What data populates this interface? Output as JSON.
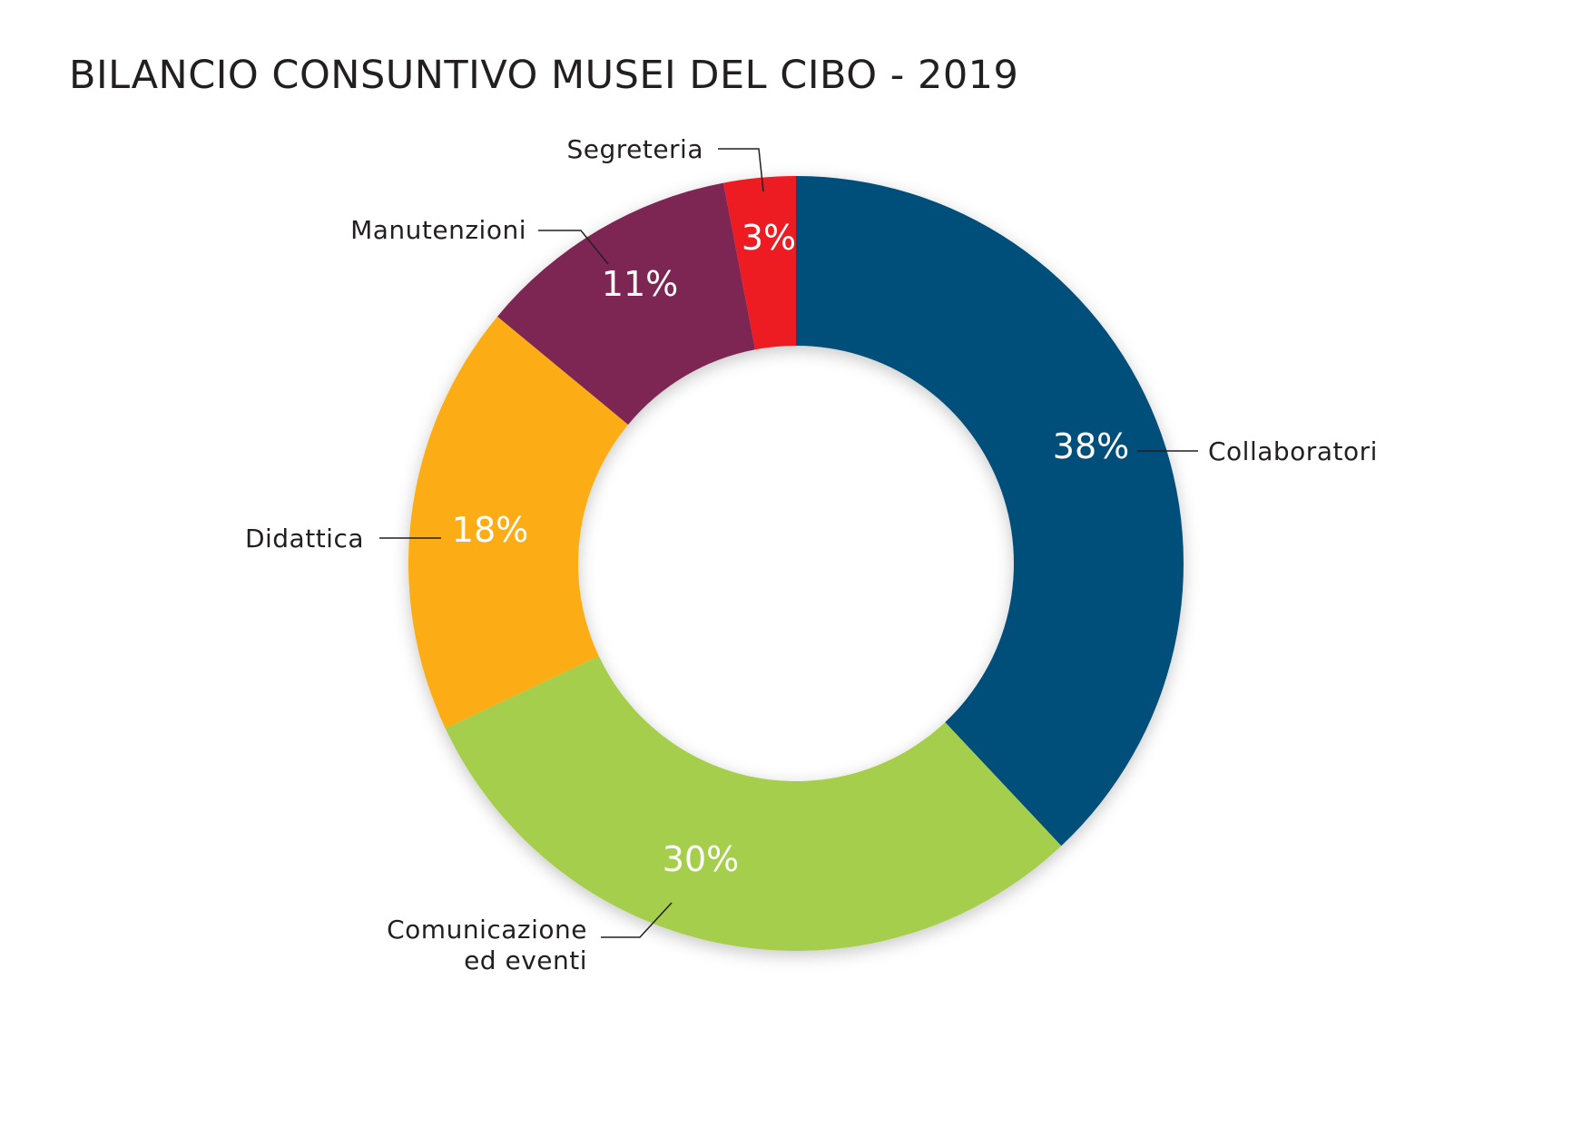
{
  "chart_data": {
    "type": "pie",
    "title": "BILANCIO CONSUNTIVO MUSEI DEL CIBO - 2019",
    "slices": [
      {
        "label": "Collaboratori",
        "label_lines": [
          "Collaboratori"
        ],
        "value": 38,
        "value_label": "38%",
        "color": "#04507a"
      },
      {
        "label": "Comunicazione ed eventi",
        "label_lines": [
          "Comunicazione",
          "ed eventi"
        ],
        "value": 30,
        "value_label": "30%",
        "color": "#a6ce4d"
      },
      {
        "label": "Didattica",
        "label_lines": [
          "Didattica"
        ],
        "value": 18,
        "value_label": "18%",
        "color": "#fcad12"
      },
      {
        "label": "Manutenzioni",
        "label_lines": [
          "Manutenzioni"
        ],
        "value": 11,
        "value_label": "11%",
        "color": "#7e2753"
      },
      {
        "label": "Segreteria",
        "label_lines": [
          "Segreteria"
        ],
        "value": 3,
        "value_label": "3%",
        "color": "#ec1c24"
      }
    ],
    "legend": "none"
  }
}
